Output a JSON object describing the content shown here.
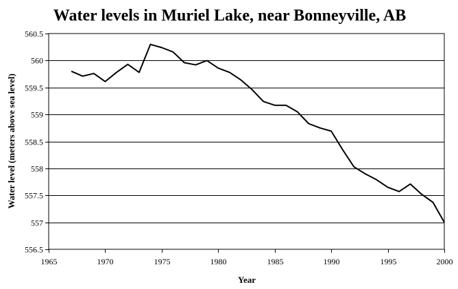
{
  "chart_data": {
    "type": "line",
    "title": "Water levels in Muriel Lake, near Bonneyville, AB",
    "xlabel": "Year",
    "ylabel": "Water level (meters above sea level)",
    "xlim": [
      1965,
      2000
    ],
    "ylim": [
      556.5,
      560.5
    ],
    "xticks": [
      1965,
      1970,
      1975,
      1980,
      1985,
      1990,
      1995,
      2000
    ],
    "yticks": [
      556.5,
      557,
      557.5,
      558,
      558.5,
      559,
      559.5,
      560,
      560.5
    ],
    "grid": "horizontal",
    "legend": "none",
    "line_color": "#000000",
    "series": [
      {
        "x": [
          1967,
          1968,
          1969,
          1970,
          1971,
          1972,
          1973,
          1974,
          1975,
          1976,
          1977,
          1978,
          1979,
          1980,
          1981,
          1982,
          1983,
          1984,
          1985,
          1986,
          1987,
          1988,
          1989,
          1990,
          1991,
          1992,
          1993,
          1994,
          1995,
          1996,
          1997,
          1998,
          1999,
          2000
        ],
        "values": [
          559.8,
          559.71,
          559.76,
          559.61,
          559.78,
          559.93,
          559.78,
          560.3,
          560.24,
          560.16,
          559.96,
          559.92,
          560.0,
          559.86,
          559.78,
          559.64,
          559.46,
          559.24,
          559.17,
          559.17,
          559.05,
          558.83,
          558.75,
          558.69,
          558.35,
          558.03,
          557.9,
          557.79,
          557.65,
          557.57,
          557.71,
          557.52,
          557.37,
          557.0
        ]
      }
    ]
  }
}
